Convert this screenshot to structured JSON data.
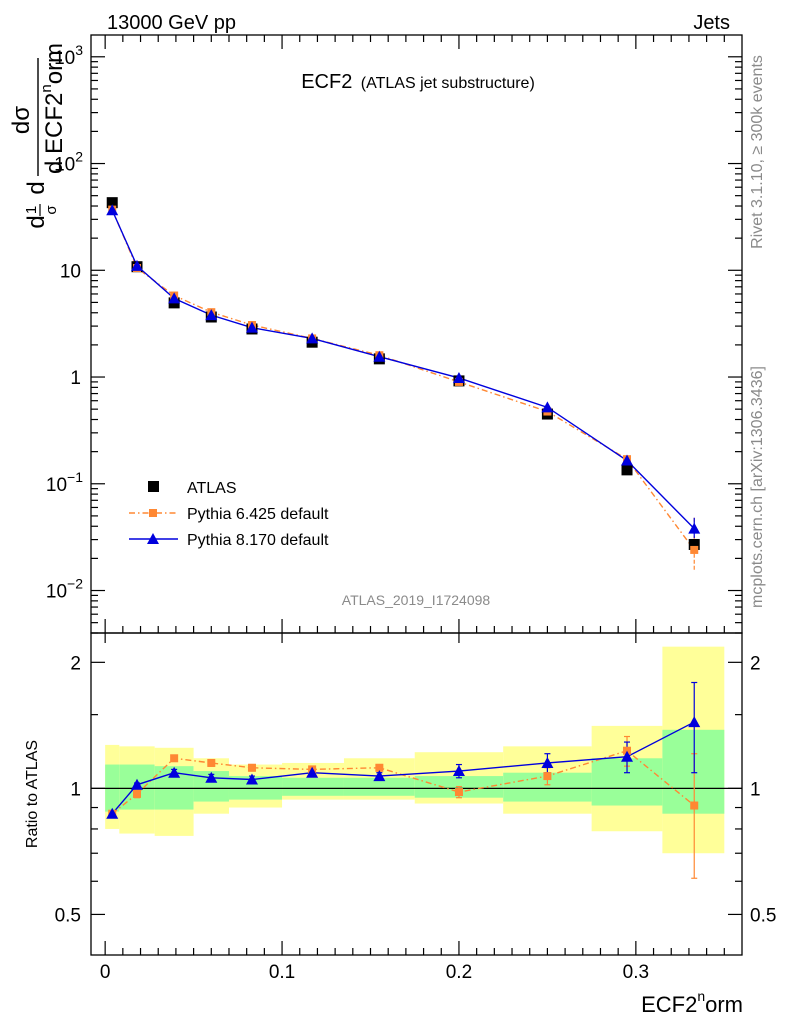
{
  "header": {
    "left": "13000 GeV pp",
    "right": "Jets"
  },
  "side_text": {
    "rivet": "Rivet 3.1.10, ≥ 300k events",
    "mcplots": "mcplots.cern.ch [arXiv:1306.3436]"
  },
  "chart_data": {
    "type": "line",
    "title": "ECF2",
    "subtitle": "(ATLAS jet substructure)",
    "watermark": "ATLAS_2019_I1724098",
    "xlabel": "ECF2ⁿorm",
    "xlabel_main": "ECF2",
    "xlabel_sup": "n",
    "xlabel_tail": "orm",
    "ylabel": {
      "prefix": "1",
      "prefix_den": "σ",
      "d": "d",
      "num": "dσ",
      "den": "d ECF2",
      "den_sup": "n",
      "den_tail": "orm"
    },
    "xlim": [
      -0.008,
      0.36
    ],
    "ylim_main": [
      0.004,
      1600
    ],
    "ylim_ratio": [
      0.4,
      2.35
    ],
    "x_ticks": [
      {
        "value": 0,
        "label": "0"
      },
      {
        "value": 0.1,
        "label": "0.1"
      },
      {
        "value": 0.2,
        "label": "0.2"
      },
      {
        "value": 0.3,
        "label": "0.3"
      }
    ],
    "y_ticks_main": [
      {
        "value": 0.01,
        "base": "10",
        "exp": "−2"
      },
      {
        "value": 0.1,
        "base": "10",
        "exp": "−1"
      },
      {
        "value": 1,
        "base": "1",
        "exp": ""
      },
      {
        "value": 10,
        "base": "10",
        "exp": ""
      },
      {
        "value": 100,
        "base": "10",
        "exp": "2"
      },
      {
        "value": 1000,
        "base": "10",
        "exp": "3"
      }
    ],
    "y_ticks_ratio": [
      {
        "value": 0.5,
        "label": "0.5"
      },
      {
        "value": 1,
        "label": "1"
      },
      {
        "value": 2,
        "label": "2"
      }
    ],
    "ratio_ylabel": "Ratio to ATLAS",
    "bins": [
      {
        "lo": 0.0,
        "hi": 0.008
      },
      {
        "lo": 0.008,
        "hi": 0.028
      },
      {
        "lo": 0.028,
        "hi": 0.05
      },
      {
        "lo": 0.05,
        "hi": 0.07
      },
      {
        "lo": 0.07,
        "hi": 0.1
      },
      {
        "lo": 0.1,
        "hi": 0.135
      },
      {
        "lo": 0.135,
        "hi": 0.175
      },
      {
        "lo": 0.175,
        "hi": 0.225
      },
      {
        "lo": 0.225,
        "hi": 0.275
      },
      {
        "lo": 0.275,
        "hi": 0.315
      },
      {
        "lo": 0.315,
        "hi": 0.35
      }
    ],
    "x": [
      0.004,
      0.018,
      0.039,
      0.06,
      0.083,
      0.117,
      0.155,
      0.2,
      0.25,
      0.295,
      0.333
    ],
    "bands": {
      "inner": [
        [
          0.88,
          1.14
        ],
        [
          0.89,
          1.14
        ],
        [
          0.89,
          1.13
        ],
        [
          0.93,
          1.1
        ],
        [
          0.94,
          1.07
        ],
        [
          0.96,
          1.06
        ],
        [
          0.96,
          1.06
        ],
        [
          0.95,
          1.07
        ],
        [
          0.93,
          1.09
        ],
        [
          0.91,
          1.18
        ],
        [
          0.87,
          1.38
        ]
      ],
      "outer": [
        [
          0.8,
          1.27
        ],
        [
          0.78,
          1.26
        ],
        [
          0.77,
          1.25
        ],
        [
          0.87,
          1.18
        ],
        [
          0.9,
          1.14
        ],
        [
          0.94,
          1.15
        ],
        [
          0.94,
          1.18
        ],
        [
          0.92,
          1.22
        ],
        [
          0.87,
          1.26
        ],
        [
          0.79,
          1.41
        ],
        [
          0.7,
          2.18
        ]
      ]
    },
    "colors": {
      "inner_band": "#99ff99",
      "outer_band": "#ffff99",
      "data": "#000000",
      "pythia6": "#ff8833",
      "pythia8": "#0000dd"
    },
    "legend": [
      {
        "key": "atlas",
        "label": "ATLAS"
      },
      {
        "key": "pythia6",
        "label": "Pythia 6.425 default"
      },
      {
        "key": "pythia8",
        "label": "Pythia 8.170 default"
      }
    ],
    "legend_position": "lower-left",
    "series": [
      {
        "key": "atlas",
        "name": "ATLAS",
        "values": [
          43,
          10.8,
          4.95,
          3.65,
          2.82,
          2.12,
          1.48,
          0.92,
          0.45,
          0.135,
          0.027
        ]
      },
      {
        "key": "pythia6",
        "name": "Pythia 6.425 default",
        "values": [
          37.0,
          10.5,
          5.8,
          4.05,
          3.07,
          2.3,
          1.6,
          0.9,
          0.475,
          0.17,
          0.024
        ],
        "ratio": [
          0.87,
          0.97,
          1.18,
          1.15,
          1.12,
          1.11,
          1.12,
          0.98,
          1.07,
          1.23,
          0.91
        ],
        "ratio_err": [
          0.01,
          0.02,
          0.02,
          0.02,
          0.02,
          0.02,
          0.02,
          0.03,
          0.05,
          0.1,
          0.3
        ]
      },
      {
        "key": "pythia8",
        "name": "Pythia 8.170 default",
        "values": [
          36.5,
          11.0,
          5.45,
          3.8,
          2.9,
          2.3,
          1.55,
          0.98,
          0.52,
          0.165,
          0.038
        ],
        "ratio": [
          0.87,
          1.02,
          1.09,
          1.06,
          1.05,
          1.09,
          1.07,
          1.1,
          1.15,
          1.19,
          1.44
        ],
        "ratio_err": [
          0.01,
          0.01,
          0.02,
          0.02,
          0.02,
          0.02,
          0.02,
          0.04,
          0.06,
          0.1,
          0.35
        ]
      }
    ]
  }
}
